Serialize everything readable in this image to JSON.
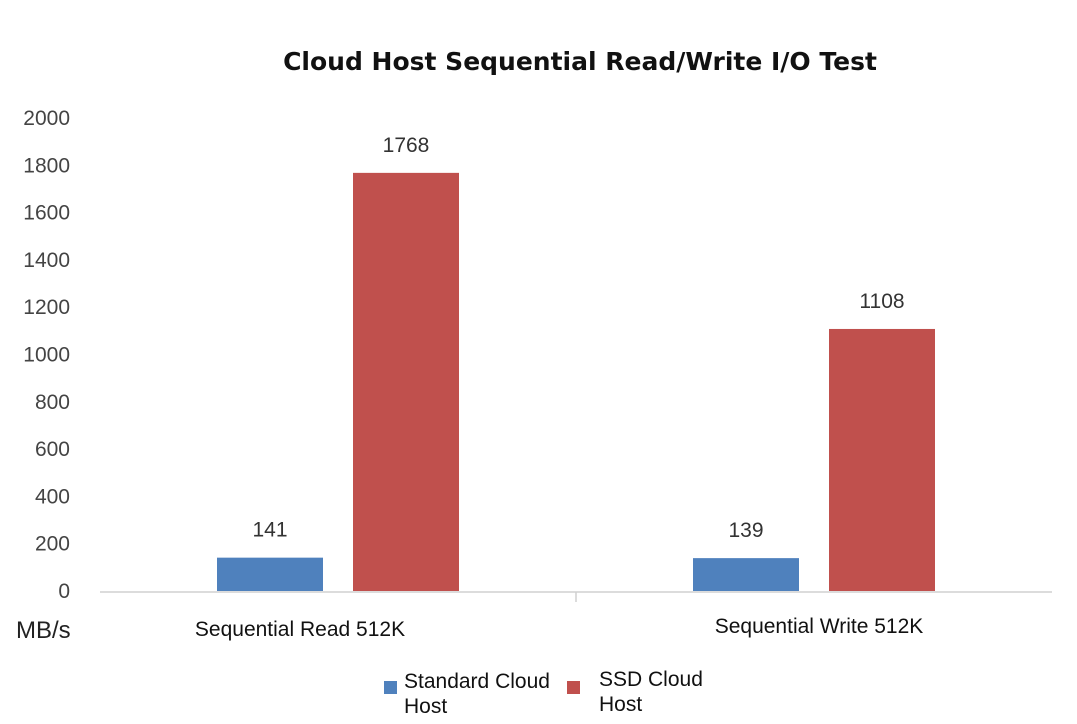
{
  "chart_data": {
    "type": "bar",
    "title": "Cloud Host Sequential Read/Write I/O Test",
    "ylabel": "MB/s",
    "xlabel": "",
    "categories": [
      "Sequential Read 512K",
      "Sequential Write 512K"
    ],
    "series": [
      {
        "name": "Standard Cloud Host",
        "values": [
          141,
          139
        ],
        "color": "#4f81bd"
      },
      {
        "name": "SSD Cloud Host",
        "values": [
          1768,
          1108
        ],
        "color": "#c0504d"
      }
    ],
    "ylim": [
      0,
      2000
    ],
    "yticks": [
      0,
      200,
      400,
      600,
      800,
      1000,
      1200,
      1400,
      1600,
      1800,
      2000
    ],
    "grid": false,
    "legend_position": "bottom"
  }
}
